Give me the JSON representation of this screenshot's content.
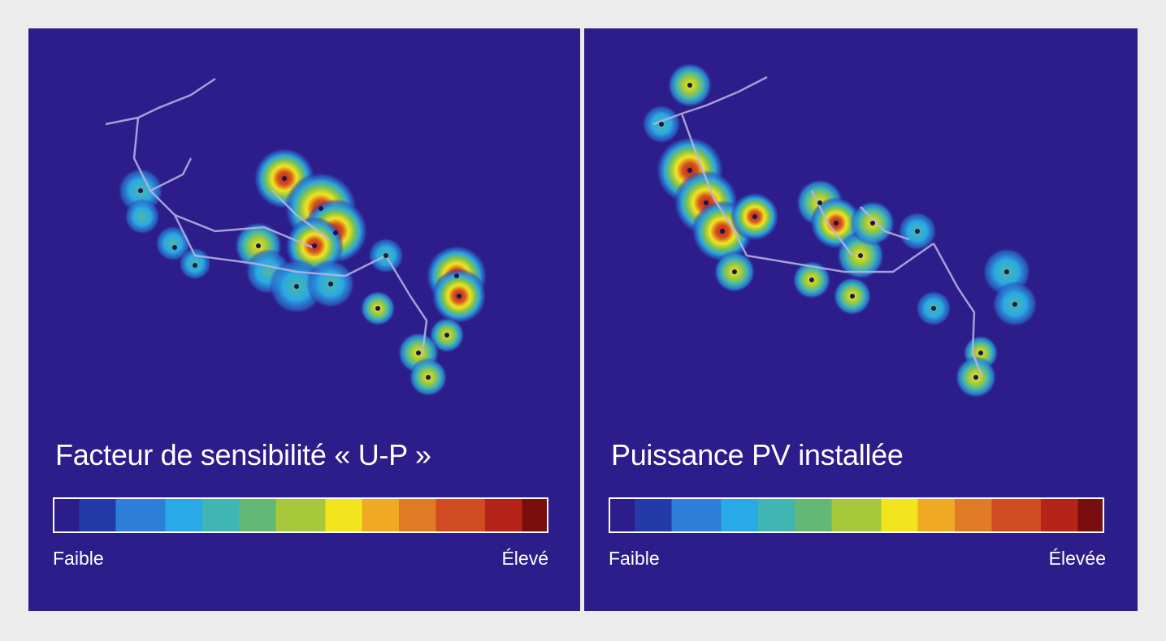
{
  "panels": [
    {
      "id": "left",
      "title": "Facteur de sensibilité « U-P »",
      "scale": {
        "low_label": "Faible",
        "high_label": "Élevé"
      }
    },
    {
      "id": "right",
      "title": "Puissance PV installée",
      "scale": {
        "low_label": "Faible",
        "high_label": "Élevée"
      }
    }
  ],
  "colors": {
    "background": "#2c1d8a",
    "page": "#ececec",
    "network": "#b9b6e6",
    "colormap": [
      "#2c1d8a",
      "#243aa8",
      "#2f7fd8",
      "#29a9e6",
      "#3fb6b2",
      "#62b874",
      "#a6c83a",
      "#f2e51e",
      "#f0a923",
      "#e07a25",
      "#d04a22",
      "#b52418",
      "#7a0d0d"
    ]
  }
}
